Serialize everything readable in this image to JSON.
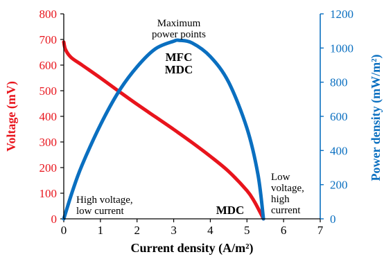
{
  "colors": {
    "voltage": "#e8141c",
    "power": "#0a6fc0",
    "axis": "#000000"
  },
  "chart_data": {
    "type": "line",
    "x_axis": {
      "label": "Current density (A/m²)",
      "range": [
        0,
        7
      ],
      "ticks": [
        "0",
        "1",
        "2",
        "3",
        "4",
        "5",
        "6",
        "7"
      ]
    },
    "y_left": {
      "label": "Voltage (mV)",
      "range": [
        0,
        800
      ],
      "ticks": [
        "0",
        "100",
        "200",
        "300",
        "400",
        "500",
        "600",
        "700",
        "800"
      ]
    },
    "y_right": {
      "label": "Power density (mW/m²)",
      "range": [
        0,
        1200
      ],
      "ticks": [
        "0",
        "200",
        "400",
        "600",
        "800",
        "1000",
        "1200"
      ]
    },
    "series": [
      {
        "axis": "left",
        "color": "#e8141c",
        "x": [
          0,
          0.05,
          0.2,
          0.5,
          1.0,
          1.5,
          2.0,
          2.5,
          3.0,
          3.5,
          4.0,
          4.5,
          5.0,
          5.2,
          5.35,
          5.45
        ],
        "y": [
          690,
          660,
          630,
          600,
          550,
          498,
          447,
          398,
          349,
          298,
          244,
          185,
          110,
          68,
          28,
          0
        ]
      },
      {
        "axis": "right",
        "color": "#0a6fc0",
        "x": [
          0,
          0.25,
          0.5,
          1.0,
          1.5,
          2.0,
          2.5,
          3.0,
          3.15,
          3.5,
          4.0,
          4.5,
          5.0,
          5.3,
          5.45
        ],
        "y": [
          0,
          170,
          315,
          550,
          745,
          890,
          995,
          1040,
          1045,
          1030,
          950,
          800,
          530,
          260,
          0
        ]
      }
    ],
    "grid": false,
    "legend": "none",
    "annotations": {
      "max_power_line1": "Maximum",
      "max_power_line2": "power points",
      "mfc": "MFC",
      "mdc_top": "MDC",
      "high_v_line1": "High voltage,",
      "high_v_line2": "low current",
      "mdc_bottom": "MDC",
      "low_v_line1": "Low",
      "low_v_line2": "voltage,",
      "low_v_line3": "high",
      "low_v_line4": "current"
    }
  }
}
